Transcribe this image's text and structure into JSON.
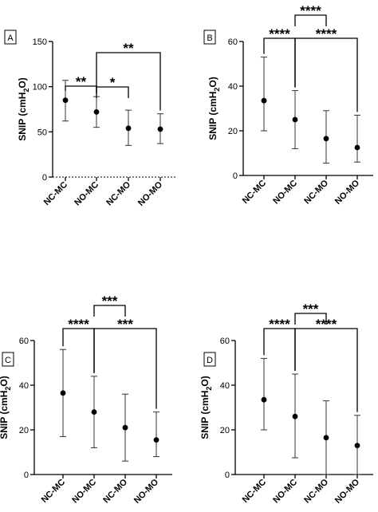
{
  "chart_data": [
    {
      "type": "scatter",
      "panel_label": "A",
      "categories": [
        "NC-MC",
        "NO-MC",
        "NC-MO",
        "NO-MO"
      ],
      "ylabel": "SNIP (cmH₂O)",
      "ylim": [
        0,
        150
      ],
      "yticks": [
        0,
        50,
        100,
        150
      ],
      "series": [
        {
          "mean": [
            85,
            72,
            54,
            53
          ],
          "err_low": [
            62,
            55,
            35,
            37
          ],
          "err_high": [
            107,
            89,
            74,
            70
          ]
        }
      ],
      "brackets": [
        {
          "from": "NC-MC",
          "to": "NO-MC",
          "label": "**"
        },
        {
          "from": "NO-MC",
          "to": "NC-MO",
          "label": "*"
        },
        {
          "from": "NO-MC",
          "to": "NO-MO",
          "label": "**"
        }
      ],
      "grid": false
    },
    {
      "type": "scatter",
      "panel_label": "B",
      "categories": [
        "NC-MC",
        "NO-MC",
        "NC-MO",
        "NO-MO"
      ],
      "ylabel": "SNIP (cmH₂O)",
      "ylim": [
        0,
        60
      ],
      "yticks": [
        0,
        20,
        40,
        60
      ],
      "series": [
        {
          "mean": [
            33.5,
            25,
            16.5,
            12.5
          ],
          "err_low": [
            20,
            12,
            5.5,
            6
          ],
          "err_high": [
            53,
            38,
            29,
            27
          ]
        }
      ],
      "brackets": [
        {
          "from": "NC-MC",
          "to": "NO-MC",
          "label": "****"
        },
        {
          "from": "NO-MC",
          "to": "NC-MO",
          "label": "****"
        },
        {
          "from": "NO-MC",
          "to": "NO-MO",
          "label": "****"
        }
      ],
      "grid": false
    },
    {
      "type": "scatter",
      "panel_label": "C",
      "categories": [
        "NC-MC",
        "NO-MC",
        "NC-MO",
        "NO-MO"
      ],
      "ylabel": "SNIP (cmH₂O)",
      "ylim": [
        0,
        60
      ],
      "yticks": [
        0,
        20,
        40,
        60
      ],
      "series": [
        {
          "mean": [
            36.5,
            28,
            21,
            15.5
          ],
          "err_low": [
            17,
            12,
            6,
            8
          ],
          "err_high": [
            56,
            44,
            36,
            28
          ]
        }
      ],
      "brackets": [
        {
          "from": "NC-MC",
          "to": "NO-MC",
          "label": "****"
        },
        {
          "from": "NO-MC",
          "to": "NC-MO",
          "label": "***"
        },
        {
          "from": "NO-MC",
          "to": "NO-MO",
          "label": "***"
        }
      ],
      "grid": false
    },
    {
      "type": "scatter",
      "panel_label": "D",
      "categories": [
        "NC-MC",
        "NO-MC",
        "NC-MO",
        "NO-MO"
      ],
      "ylabel": "SNIP (cmH₂O)",
      "ylim": [
        0,
        60
      ],
      "yticks": [
        0,
        20,
        40,
        60
      ],
      "series": [
        {
          "mean": [
            33.5,
            26,
            16.5,
            13
          ],
          "err_low": [
            20,
            7.5,
            0,
            0
          ],
          "err_high": [
            52,
            45,
            33,
            26.5
          ]
        }
      ],
      "brackets": [
        {
          "from": "NC-MC",
          "to": "NO-MC",
          "label": "****"
        },
        {
          "from": "NO-MC",
          "to": "NC-MO",
          "label": "***"
        },
        {
          "from": "NO-MC",
          "to": "NO-MO",
          "label": "****"
        }
      ],
      "grid": false
    }
  ]
}
